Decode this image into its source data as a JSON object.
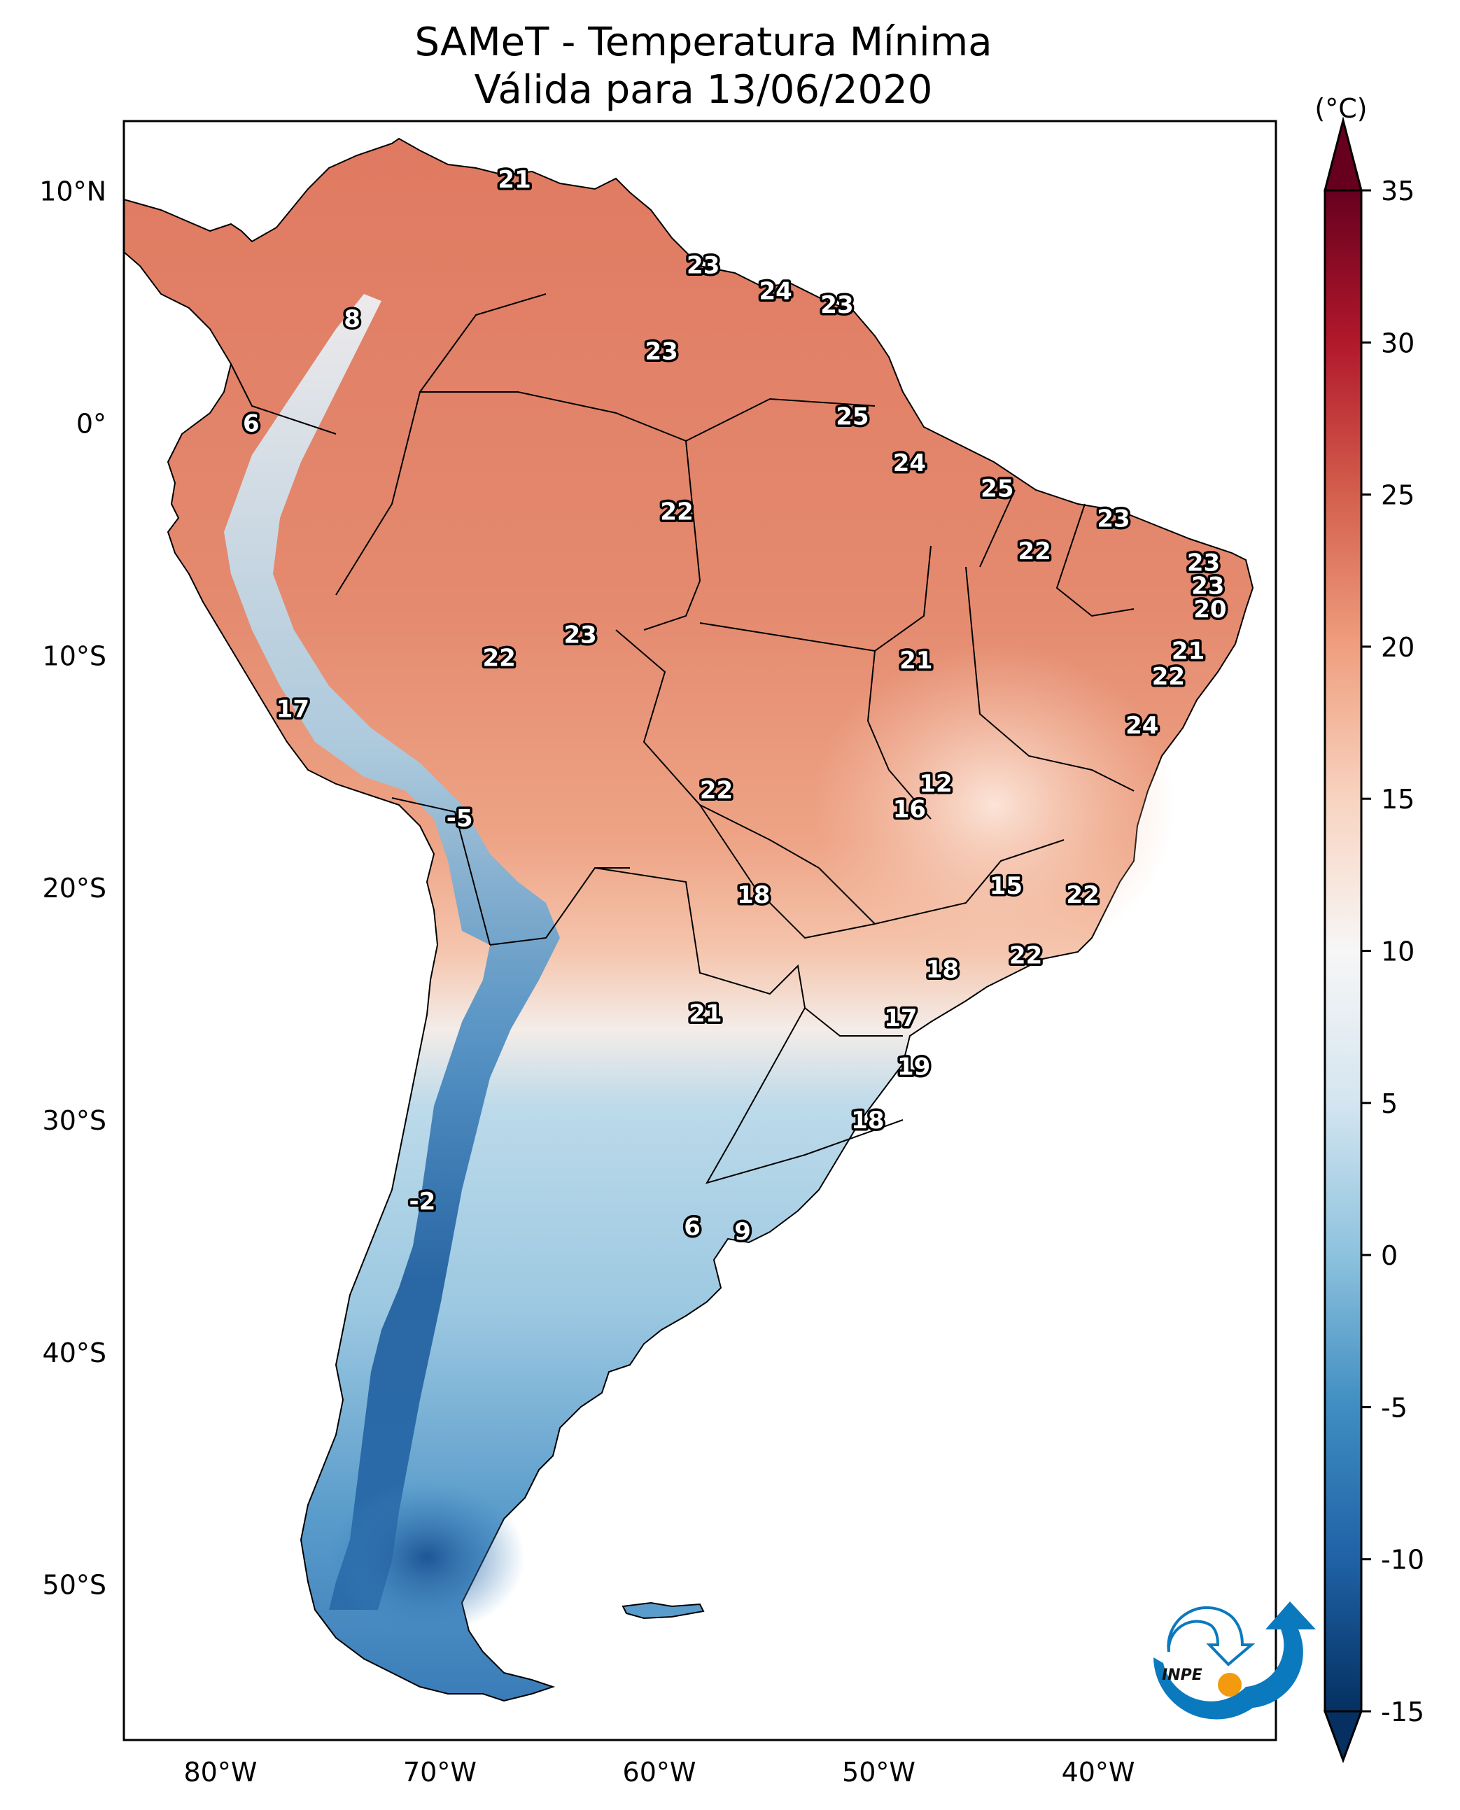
{
  "title": {
    "line1": "SAMeT - Temperatura Mínima",
    "line2": "Válida para 13/06/2020"
  },
  "logo": {
    "text": "INPE",
    "colors": {
      "blue": "#0b79bd",
      "orange": "#f39a0f"
    }
  },
  "chart_data": {
    "type": "heatmap",
    "title": "SAMeT - Temperatura Mínima — Válida para 13/06/2020",
    "variable": "Minimum temperature",
    "units": "(°C)",
    "colormap": "RdBu_r",
    "xlim": [
      -84.4,
      -31.9
    ],
    "ylim": [
      -56.7,
      13.0
    ],
    "x_ticks": [
      {
        "value": -80,
        "label": "80°W"
      },
      {
        "value": -70,
        "label": "70°W"
      },
      {
        "value": -60,
        "label": "60°W"
      },
      {
        "value": -50,
        "label": "50°W"
      },
      {
        "value": -40,
        "label": "40°W"
      }
    ],
    "y_ticks": [
      {
        "value": 10,
        "label": "10°N"
      },
      {
        "value": 0,
        "label": "0°"
      },
      {
        "value": -10,
        "label": "10°S"
      },
      {
        "value": -20,
        "label": "20°S"
      },
      {
        "value": -30,
        "label": "30°S"
      },
      {
        "value": -40,
        "label": "40°S"
      },
      {
        "value": -50,
        "label": "50°S"
      }
    ],
    "colorbar": {
      "label": "(°C)",
      "range": [
        -15,
        35
      ],
      "extend": "both",
      "ticks": [
        35,
        30,
        25,
        20,
        15,
        10,
        5,
        0,
        -5,
        -10,
        -15
      ],
      "tick_labels": [
        "35",
        "30",
        "25",
        "20",
        "15",
        "10",
        "5",
        "0",
        "-5",
        "-10",
        "-15"
      ],
      "color_stops": [
        {
          "value": -15,
          "color": "#053061"
        },
        {
          "value": -10,
          "color": "#1f62a6"
        },
        {
          "value": -5,
          "color": "#3f8dc2"
        },
        {
          "value": 0,
          "color": "#8dc2de"
        },
        {
          "value": 5,
          "color": "#d4e5f0"
        },
        {
          "value": 10,
          "color": "#f7f6f6"
        },
        {
          "value": 15,
          "color": "#f8d3c0"
        },
        {
          "value": 20,
          "color": "#ef9f7f"
        },
        {
          "value": 25,
          "color": "#d45f4d"
        },
        {
          "value": 30,
          "color": "#b2182b"
        },
        {
          "value": 35,
          "color": "#67001f"
        }
      ]
    },
    "point_labels": [
      {
        "lon": -66.6,
        "lat": 10.5,
        "value": "21"
      },
      {
        "lon": -58.0,
        "lat": 6.8,
        "value": "23"
      },
      {
        "lon": -54.7,
        "lat": 5.7,
        "value": "24"
      },
      {
        "lon": -51.9,
        "lat": 5.1,
        "value": "23"
      },
      {
        "lon": -74.0,
        "lat": 4.5,
        "value": "8"
      },
      {
        "lon": -59.9,
        "lat": 3.1,
        "value": "23"
      },
      {
        "lon": -78.6,
        "lat": 0.0,
        "value": "6"
      },
      {
        "lon": -51.2,
        "lat": 0.3,
        "value": "25"
      },
      {
        "lon": -48.6,
        "lat": -1.7,
        "value": "24"
      },
      {
        "lon": -44.6,
        "lat": -2.8,
        "value": "25"
      },
      {
        "lon": -59.2,
        "lat": -3.8,
        "value": "22"
      },
      {
        "lon": -39.3,
        "lat": -4.1,
        "value": "23"
      },
      {
        "lon": -42.9,
        "lat": -5.5,
        "value": "22"
      },
      {
        "lon": -35.2,
        "lat": -6.0,
        "value": "23"
      },
      {
        "lon": -35.0,
        "lat": -7.0,
        "value": "23"
      },
      {
        "lon": -34.9,
        "lat": -8.0,
        "value": "20"
      },
      {
        "lon": -63.6,
        "lat": -9.1,
        "value": "23"
      },
      {
        "lon": -67.3,
        "lat": -10.1,
        "value": "22"
      },
      {
        "lon": -48.3,
        "lat": -10.2,
        "value": "21"
      },
      {
        "lon": -35.9,
        "lat": -9.8,
        "value": "21"
      },
      {
        "lon": -36.8,
        "lat": -10.9,
        "value": "22"
      },
      {
        "lon": -76.7,
        "lat": -12.3,
        "value": "17"
      },
      {
        "lon": -38.0,
        "lat": -13.0,
        "value": "24"
      },
      {
        "lon": -47.4,
        "lat": -15.5,
        "value": "12"
      },
      {
        "lon": -57.4,
        "lat": -15.8,
        "value": "22"
      },
      {
        "lon": -48.6,
        "lat": -16.6,
        "value": "16"
      },
      {
        "lon": -69.1,
        "lat": -17.0,
        "value": "-5"
      },
      {
        "lon": -44.2,
        "lat": -19.9,
        "value": "15"
      },
      {
        "lon": -55.7,
        "lat": -20.3,
        "value": "18"
      },
      {
        "lon": -40.7,
        "lat": -20.3,
        "value": "22"
      },
      {
        "lon": -43.3,
        "lat": -22.9,
        "value": "22"
      },
      {
        "lon": -47.1,
        "lat": -23.5,
        "value": "18"
      },
      {
        "lon": -57.9,
        "lat": -25.4,
        "value": "21"
      },
      {
        "lon": -49.0,
        "lat": -25.6,
        "value": "17"
      },
      {
        "lon": -48.4,
        "lat": -27.7,
        "value": "19"
      },
      {
        "lon": -50.5,
        "lat": -30.0,
        "value": "18"
      },
      {
        "lon": -70.8,
        "lat": -33.5,
        "value": "-2"
      },
      {
        "lon": -58.5,
        "lat": -34.6,
        "value": "6"
      },
      {
        "lon": -56.2,
        "lat": -34.8,
        "value": "9"
      }
    ]
  }
}
